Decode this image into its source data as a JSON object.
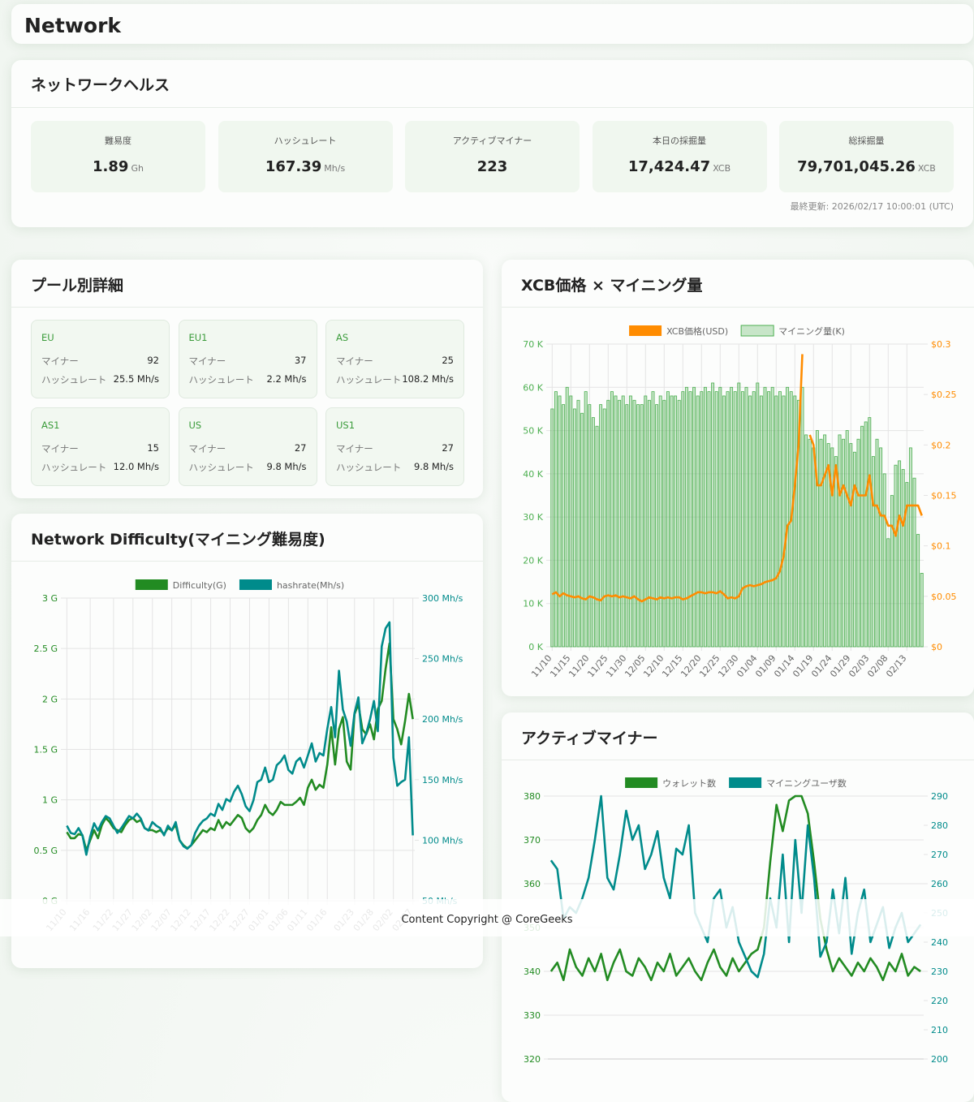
{
  "header": {
    "title": "Network"
  },
  "health": {
    "title": "ネットワークヘルス",
    "stats": [
      {
        "label": "難易度",
        "value": "1.89",
        "unit": "Gh"
      },
      {
        "label": "ハッシュレート",
        "value": "167.39",
        "unit": "Mh/s"
      },
      {
        "label": "アクティブマイナー",
        "value": "223"
      },
      {
        "label": "本日の採掘量",
        "value": "17,424.47",
        "unit": "XCB"
      },
      {
        "label": "総採掘量",
        "value": "79,701,045.26",
        "unit": "XCB"
      }
    ],
    "updated": "最終更新: 2026/02/17 10:00:01 (UTC)"
  },
  "pools": {
    "title": "プール別詳細",
    "miner_label": "マイナー",
    "hash_label": "ハッシュレート",
    "items": [
      {
        "name": "EU",
        "miners": 92,
        "hashrate": "25.5 Mh/s"
      },
      {
        "name": "EU1",
        "miners": 37,
        "hashrate": "2.2 Mh/s"
      },
      {
        "name": "AS",
        "miners": 25,
        "hashrate": "108.2 Mh/s"
      },
      {
        "name": "AS1",
        "miners": 15,
        "hashrate": "12.0 Mh/s"
      },
      {
        "name": "US",
        "miners": 27,
        "hashrate": "9.8 Mh/s"
      },
      {
        "name": "US1",
        "miners": 27,
        "hashrate": "9.8 Mh/s"
      }
    ]
  },
  "chart_data": [
    {
      "type": "combo",
      "title": "XCB価格 × マイニング量",
      "categories": [
        "11/10",
        null,
        null,
        null,
        null,
        "11/15",
        null,
        null,
        null,
        null,
        "11/20",
        null,
        null,
        null,
        null,
        "11/25",
        null,
        null,
        null,
        null,
        "11/30",
        null,
        null,
        null,
        null,
        "12/05",
        null,
        null,
        null,
        null,
        "12/10",
        null,
        null,
        null,
        null,
        "12/15",
        null,
        null,
        null,
        null,
        "12/20",
        null,
        null,
        null,
        null,
        "12/25",
        null,
        null,
        null,
        null,
        "12/30",
        null,
        null,
        null,
        null,
        "01/04",
        null,
        null,
        null,
        null,
        "01/09",
        null,
        null,
        null,
        null,
        "01/14",
        null,
        null,
        null,
        null,
        "01/19",
        null,
        null,
        null,
        null,
        "01/24",
        null,
        null,
        null,
        null,
        "01/29",
        null,
        null,
        null,
        null,
        "02/03",
        null,
        null,
        null,
        null,
        "02/08",
        null,
        null,
        null,
        null,
        "02/13",
        null,
        null,
        null,
        null
      ],
      "series": [
        {
          "name": "XCB価格(USD)",
          "type": "line",
          "axis": "y2",
          "color": "#ff8c00",
          "values": [
            0.052,
            0.054,
            0.05,
            0.053,
            0.051,
            0.05,
            0.049,
            0.05,
            0.048,
            0.047,
            0.05,
            0.049,
            0.047,
            0.046,
            0.05,
            0.051,
            0.05,
            0.051,
            0.049,
            0.05,
            0.049,
            0.048,
            0.05,
            0.047,
            0.045,
            0.047,
            0.049,
            0.048,
            0.047,
            0.049,
            0.048,
            0.049,
            0.048,
            0.049,
            0.049,
            0.047,
            0.048,
            0.05,
            0.052,
            0.054,
            0.054,
            0.053,
            0.054,
            0.054,
            0.053,
            0.055,
            0.052,
            0.048,
            0.049,
            0.048,
            0.05,
            0.058,
            0.06,
            0.061,
            0.06,
            0.061,
            0.062,
            0.064,
            0.065,
            0.066,
            0.068,
            0.075,
            0.09,
            0.12,
            0.125,
            0.16,
            0.2,
            0.29,
            null,
            0.21,
            0.2,
            0.16,
            0.16,
            0.17,
            0.18,
            0.15,
            0.18,
            0.15,
            0.16,
            0.15,
            0.14,
            0.16,
            0.15,
            0.15,
            0.15,
            0.17,
            0.14,
            0.14,
            0.13,
            0.13,
            0.12,
            0.12,
            0.11,
            0.13,
            0.12,
            0.14,
            0.14,
            0.14,
            0.14,
            0.13
          ]
        },
        {
          "name": "マイニング量(K)",
          "type": "bar",
          "color": "#4caf50",
          "values": [
            55,
            59,
            58,
            56,
            60,
            58,
            55,
            57,
            54,
            59,
            56,
            53,
            51,
            56,
            55,
            57,
            59,
            58,
            57,
            58,
            56,
            58,
            57,
            56,
            56,
            58,
            57,
            59,
            56,
            58,
            57,
            59,
            58,
            58,
            57,
            59,
            60,
            59,
            60,
            58,
            59,
            60,
            59,
            61,
            59,
            60,
            58,
            59,
            60,
            59,
            61,
            59,
            60,
            58,
            59,
            61,
            58,
            60,
            59,
            60,
            58,
            59,
            58,
            60,
            59,
            58,
            57,
            60,
            49,
            48,
            46,
            50,
            48,
            49,
            47,
            46,
            44,
            49,
            48,
            50,
            47,
            45,
            48,
            51,
            52,
            53,
            44,
            48,
            46,
            40,
            25,
            35,
            42,
            43,
            41,
            38,
            46,
            39,
            26,
            17
          ]
        }
      ],
      "ylim": [
        0,
        70
      ],
      "yticks": [
        {
          "value": 0,
          "label": "0 K"
        },
        {
          "value": 10,
          "label": "10 K"
        },
        {
          "value": 20,
          "label": "20 K"
        },
        {
          "value": 30,
          "label": "30 K"
        },
        {
          "value": 40,
          "label": "40 K"
        },
        {
          "value": 50,
          "label": "50 K"
        },
        {
          "value": 60,
          "label": "60 K"
        },
        {
          "value": 70,
          "label": "70 K"
        }
      ],
      "y2lim": [
        0,
        0.3
      ],
      "y2ticks": [
        {
          "value": 0,
          "label": "$0"
        },
        {
          "value": 0.05,
          "label": "$0.05"
        },
        {
          "value": 0.1,
          "label": "$0.1"
        },
        {
          "value": 0.15,
          "label": "$0.15"
        },
        {
          "value": 0.2,
          "label": "$0.2"
        },
        {
          "value": 0.25,
          "label": "$0.25"
        },
        {
          "value": 0.3,
          "label": "$0.3"
        }
      ],
      "grid": true,
      "legend": "top"
    },
    {
      "type": "line",
      "title": "Network Difficulty(マイニング難易度)",
      "categories": [
        "11/10",
        null,
        null,
        null,
        null,
        null,
        "11/16",
        null,
        null,
        null,
        null,
        null,
        "11/22",
        null,
        null,
        null,
        null,
        "11/27",
        null,
        null,
        null,
        null,
        "12/02",
        null,
        null,
        null,
        null,
        "12/07",
        null,
        null,
        null,
        null,
        "12/12",
        null,
        null,
        null,
        null,
        "12/17",
        null,
        null,
        null,
        null,
        "12/22",
        null,
        null,
        null,
        null,
        "12/27",
        null,
        null,
        null,
        null,
        "01/01",
        null,
        null,
        null,
        null,
        "01/06",
        null,
        null,
        null,
        null,
        "01/11",
        null,
        null,
        null,
        null,
        "01/16",
        null,
        null,
        null,
        null,
        null,
        null,
        "01/23",
        null,
        null,
        null,
        null,
        "01/28",
        null,
        null,
        null,
        null,
        "02/02",
        null,
        null,
        null,
        null,
        "02/07"
      ],
      "series": [
        {
          "name": "Difficulty(G)",
          "color": "#228b22",
          "values": [
            0.68,
            0.62,
            0.62,
            0.66,
            0.65,
            0.5,
            0.6,
            0.7,
            0.62,
            0.75,
            0.82,
            0.78,
            0.72,
            0.7,
            0.68,
            0.75,
            0.8,
            0.82,
            0.78,
            0.8,
            0.72,
            0.7,
            0.7,
            0.68,
            0.7,
            0.66,
            0.72,
            0.7,
            0.75,
            0.6,
            0.55,
            0.52,
            0.55,
            0.6,
            0.65,
            0.7,
            0.68,
            0.72,
            0.7,
            0.8,
            0.72,
            0.78,
            0.75,
            0.8,
            0.85,
            0.82,
            0.72,
            0.68,
            0.72,
            0.8,
            0.85,
            0.95,
            0.88,
            0.85,
            0.9,
            0.98,
            0.95,
            0.95,
            0.95,
            0.98,
            1.02,
            0.95,
            1.12,
            1.2,
            1.1,
            1.15,
            1.12,
            1.35,
            1.72,
            1.35,
            1.7,
            1.82,
            1.38,
            1.3,
            1.85,
            1.95,
            1.7,
            1.65,
            1.75,
            1.6,
            1.9,
            1.98,
            2.3,
            2.55,
            1.8,
            1.7,
            1.55,
            1.78,
            2.05,
            1.8
          ]
        },
        {
          "name": "hashrate(Mh/s)",
          "axis": "y2",
          "color": "#008b8b",
          "values": [
            112,
            106,
            105,
            110,
            104,
            88,
            103,
            114,
            108,
            115,
            120,
            118,
            112,
            106,
            110,
            115,
            120,
            118,
            122,
            118,
            110,
            108,
            115,
            112,
            110,
            104,
            112,
            108,
            115,
            100,
            95,
            93,
            96,
            106,
            112,
            116,
            118,
            122,
            120,
            130,
            125,
            134,
            132,
            140,
            145,
            138,
            128,
            124,
            133,
            148,
            150,
            160,
            148,
            150,
            162,
            165,
            170,
            158,
            155,
            165,
            168,
            160,
            170,
            180,
            165,
            172,
            170,
            192,
            210,
            185,
            240,
            208,
            198,
            178,
            205,
            218,
            180,
            188,
            200,
            215,
            190,
            260,
            275,
            280,
            168,
            145,
            148,
            150,
            185,
            104
          ]
        }
      ],
      "ylim": [
        0,
        3
      ],
      "yticks": [
        {
          "value": 0,
          "label": "0 G"
        },
        {
          "value": 0.5,
          "label": "0.5 G"
        },
        {
          "value": 1,
          "label": "1 G"
        },
        {
          "value": 1.5,
          "label": "1.5 G"
        },
        {
          "value": 2,
          "label": "2 G"
        },
        {
          "value": 2.5,
          "label": "2.5 G"
        },
        {
          "value": 3,
          "label": "3 G"
        }
      ],
      "y2lim": [
        50,
        300
      ],
      "y2ticks": [
        {
          "value": 50,
          "label": "50 Mh/s"
        },
        {
          "value": 100,
          "label": "100 Mh/s"
        },
        {
          "value": 150,
          "label": "150 Mh/s"
        },
        {
          "value": 200,
          "label": "200 Mh/s"
        },
        {
          "value": 250,
          "label": "250 Mh/s"
        },
        {
          "value": 300,
          "label": "300 Mh/s"
        }
      ],
      "grid": true,
      "legend": "top"
    },
    {
      "type": "line",
      "title": "アクティブマイナー",
      "categories": [
        null,
        null,
        null,
        null,
        null,
        null,
        null,
        null,
        null,
        null,
        null,
        null,
        null,
        null,
        null,
        null,
        null,
        null,
        null,
        null,
        null,
        null,
        null,
        null,
        null,
        null,
        null,
        null,
        null,
        null,
        null,
        null,
        null,
        null,
        null,
        null,
        null,
        null,
        null,
        null,
        null,
        null,
        null,
        null,
        null,
        null,
        null,
        null,
        null,
        null,
        null,
        null,
        null,
        null,
        null,
        null,
        null,
        null,
        null,
        null
      ],
      "series": [
        {
          "name": "ウォレット数",
          "color": "#228b22",
          "values": [
            340,
            342,
            338,
            345,
            341,
            339,
            343,
            340,
            344,
            338,
            342,
            345,
            340,
            339,
            343,
            341,
            338,
            342,
            340,
            344,
            339,
            341,
            343,
            340,
            338,
            342,
            345,
            341,
            339,
            343,
            340,
            342,
            344,
            345,
            350,
            365,
            378,
            372,
            379,
            380,
            380,
            376,
            365,
            352,
            345,
            340,
            343,
            341,
            339,
            342,
            340,
            343,
            341,
            338,
            342,
            340,
            344,
            339,
            341,
            340
          ]
        },
        {
          "name": "マイニングユーザ数",
          "axis": "y2",
          "color": "#008b8b",
          "values": [
            268,
            265,
            248,
            252,
            250,
            255,
            262,
            275,
            290,
            262,
            258,
            270,
            285,
            275,
            280,
            265,
            270,
            278,
            262,
            255,
            272,
            270,
            280,
            250,
            245,
            240,
            255,
            258,
            245,
            252,
            240,
            235,
            230,
            228,
            236,
            255,
            245,
            270,
            240,
            275,
            250,
            280,
            262,
            235,
            240,
            258,
            243,
            262,
            236,
            250,
            258,
            240,
            246,
            252,
            238,
            245,
            250,
            240,
            243,
            246
          ]
        }
      ],
      "ylim": [
        320,
        380
      ],
      "yticks": [
        320,
        330,
        340,
        350,
        360,
        370,
        380
      ],
      "y2lim": [
        200,
        290
      ],
      "y2ticks": [
        200,
        210,
        220,
        230,
        240,
        250,
        260,
        270,
        280,
        290
      ],
      "grid": true,
      "legend": "top"
    }
  ],
  "footer": "Content Copyright @ CoreGeeks"
}
